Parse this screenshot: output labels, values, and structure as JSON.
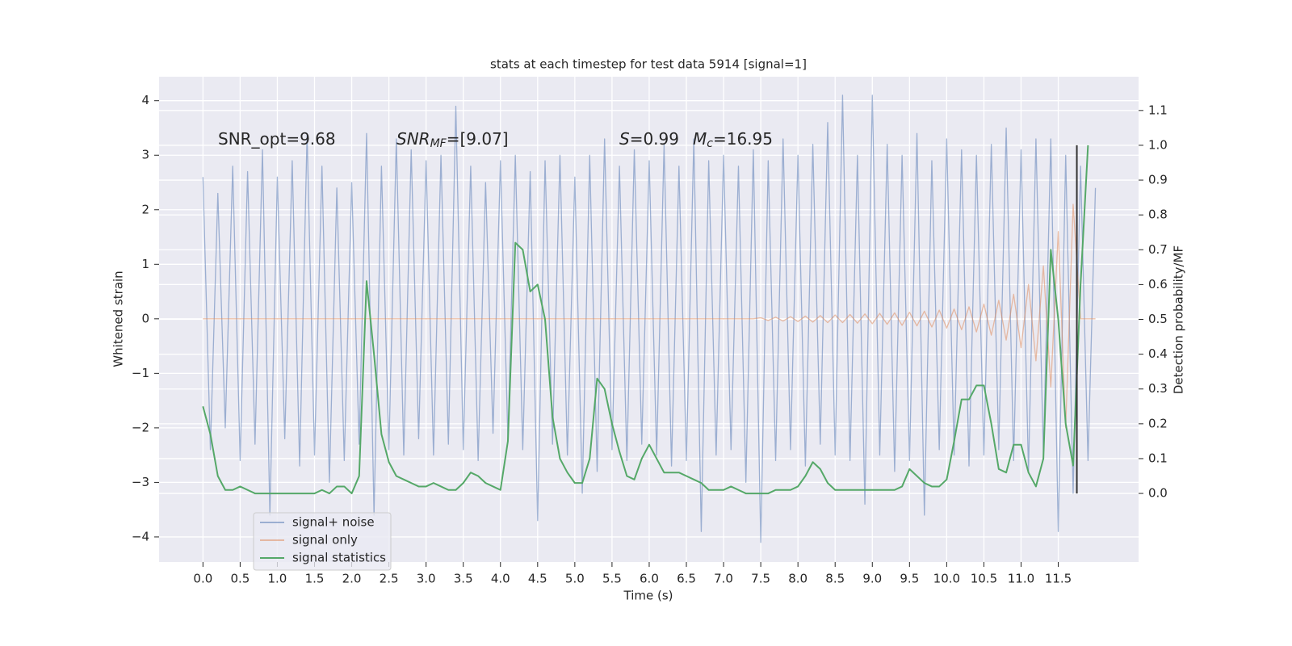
{
  "chart_data": {
    "type": "line",
    "title": "stats at each timestep for test data 5914 [signal=1]",
    "xlabel": "Time (s)",
    "ylabel": "Whitened strain",
    "y2label": "Detection probability/MF",
    "grid": true,
    "legend": "lower left",
    "xlim": [
      -0.59,
      12.58
    ],
    "ylim": [
      -4.46,
      4.44
    ],
    "y2lim": [
      -0.197,
      1.197
    ],
    "xticks": [
      {
        "value": 0,
        "label": "0.0"
      },
      0.5,
      {
        "value": 1,
        "label": "1.0"
      },
      1.5,
      {
        "value": 2,
        "label": "2.0"
      },
      2.5,
      {
        "value": 3,
        "label": "3.0"
      },
      3.5,
      {
        "value": 4,
        "label": "4.0"
      },
      4.5,
      {
        "value": 5,
        "label": "5.0"
      },
      5.5,
      {
        "value": 6,
        "label": "6.0"
      },
      6.5,
      {
        "value": 7,
        "label": "7.0"
      },
      7.5,
      {
        "value": 8,
        "label": "8.0"
      },
      8.5,
      {
        "value": 9,
        "label": "9.0"
      },
      9.5,
      {
        "value": 10,
        "label": "10.0"
      },
      10.5,
      {
        "value": 11,
        "label": "11.0"
      },
      11.5
    ],
    "yticks": [
      {
        "value": -4,
        "label": "−4"
      },
      {
        "value": -3,
        "label": "−3"
      },
      {
        "value": -2,
        "label": "−2"
      },
      {
        "value": -1,
        "label": "−1"
      },
      0,
      1,
      2,
      3,
      4
    ],
    "y2ticks": [
      {
        "value": 0,
        "label": "0.0"
      },
      0.1,
      0.2,
      0.3,
      0.4,
      0.5,
      0.6,
      0.7,
      0.8,
      0.9,
      {
        "value": 1,
        "label": "1.0"
      },
      1.1
    ],
    "annotations": [
      {
        "text": "SNR_opt=9.68"
      },
      {
        "base": "SNR",
        "sub": "MF",
        "rest": "=[9.07]"
      },
      {
        "base": "S",
        "rest": "=0.99"
      },
      {
        "base": "M",
        "sub": "c",
        "rest": "=16.95"
      }
    ],
    "vline": {
      "x": 11.75,
      "y2": [
        0,
        1
      ],
      "color": "#333333"
    },
    "x": [
      0.0,
      0.1,
      0.2,
      0.3,
      0.4,
      0.5,
      0.6,
      0.7,
      0.8,
      0.9,
      1.0,
      1.1,
      1.2,
      1.3,
      1.4,
      1.5,
      1.6,
      1.7,
      1.8,
      1.9,
      2.0,
      2.1,
      2.2,
      2.3,
      2.4,
      2.5,
      2.6,
      2.7,
      2.8,
      2.9,
      3.0,
      3.1,
      3.2,
      3.3,
      3.4,
      3.5,
      3.6,
      3.7,
      3.8,
      3.9,
      4.0,
      4.1,
      4.2,
      4.3,
      4.4,
      4.5,
      4.6,
      4.7,
      4.8,
      4.9,
      5.0,
      5.1,
      5.2,
      5.3,
      5.4,
      5.5,
      5.6,
      5.7,
      5.8,
      5.9,
      6.0,
      6.1,
      6.2,
      6.3,
      6.4,
      6.5,
      6.6,
      6.7,
      6.8,
      6.9,
      7.0,
      7.1,
      7.2,
      7.3,
      7.4,
      7.5,
      7.6,
      7.7,
      7.8,
      7.9,
      8.0,
      8.1,
      8.2,
      8.3,
      8.4,
      8.5,
      8.6,
      8.7,
      8.8,
      8.9,
      9.0,
      9.1,
      9.2,
      9.3,
      9.4,
      9.5,
      9.6,
      9.7,
      9.8,
      9.9,
      10.0,
      10.1,
      10.2,
      10.3,
      10.4,
      10.5,
      10.6,
      10.7,
      10.8,
      10.9,
      11.0,
      11.1,
      11.2,
      11.3,
      11.4,
      11.5,
      11.6,
      11.7,
      11.8,
      11.9,
      12.0
    ],
    "series": [
      {
        "name": "signal+ noise",
        "color": "#4c72b0",
        "alpha": 0.5,
        "values": [
          2.6,
          -2.4,
          2.3,
          -2.0,
          2.8,
          -2.6,
          2.7,
          -2.3,
          3.1,
          -3.6,
          2.6,
          -2.2,
          2.9,
          -2.7,
          3.4,
          -2.5,
          2.8,
          -3.0,
          2.4,
          -2.6,
          2.5,
          -2.3,
          3.4,
          -3.6,
          2.8,
          -2.4,
          3.3,
          -2.5,
          3.1,
          -2.2,
          2.9,
          -2.5,
          3.0,
          -2.3,
          3.9,
          -2.4,
          2.8,
          -2.6,
          2.5,
          -2.1,
          2.9,
          -2.2,
          3.0,
          -2.4,
          2.7,
          -3.7,
          2.9,
          -2.3,
          3.0,
          -2.5,
          2.6,
          -3.2,
          3.0,
          -2.8,
          3.3,
          -2.4,
          2.8,
          -2.6,
          3.1,
          -2.3,
          2.9,
          -2.5,
          3.2,
          -2.7,
          2.8,
          -2.6,
          3.3,
          -3.9,
          2.9,
          -2.5,
          3.0,
          -2.4,
          2.8,
          -3.0,
          3.1,
          -4.1,
          2.9,
          -2.6,
          3.3,
          -2.4,
          3.0,
          -2.7,
          3.2,
          -2.3,
          3.6,
          -2.5,
          4.1,
          -2.6,
          3.0,
          -3.4,
          4.1,
          -2.5,
          3.2,
          -2.8,
          3.0,
          -2.6,
          3.4,
          -3.6,
          2.9,
          -2.4,
          3.3,
          -2.5,
          3.1,
          -2.7,
          3.0,
          -2.5,
          3.2,
          -2.4,
          3.5,
          -2.6,
          3.1,
          -2.8,
          3.3,
          -2.5,
          3.3,
          -3.9,
          3.0,
          -3.2,
          2.8,
          -2.6,
          2.4
        ]
      },
      {
        "name": "signal only",
        "color": "#dd8452",
        "alpha": 0.5,
        "values": [
          0,
          0,
          0,
          0,
          0,
          0,
          0,
          0,
          0,
          0,
          0,
          0,
          0,
          0,
          0,
          0,
          0,
          0,
          0,
          0,
          0,
          0,
          0,
          0,
          0,
          0,
          0,
          0,
          0,
          0,
          0,
          0,
          0,
          0,
          0,
          0,
          0,
          0,
          0,
          0,
          0,
          0,
          0,
          0,
          0,
          0,
          0,
          0,
          0,
          0,
          0,
          0,
          0,
          0,
          0,
          0,
          0,
          0,
          0,
          0,
          0,
          0,
          0,
          0,
          0,
          0,
          0,
          0,
          0,
          0,
          0,
          0,
          0,
          0,
          0,
          0.02,
          -0.03,
          0.03,
          -0.04,
          0.04,
          -0.05,
          0.05,
          -0.06,
          0.06,
          -0.07,
          0.07,
          -0.07,
          0.08,
          -0.08,
          0.09,
          -0.09,
          0.1,
          -0.1,
          0.11,
          -0.12,
          0.12,
          -0.13,
          0.14,
          -0.15,
          0.16,
          -0.17,
          0.18,
          -0.2,
          0.22,
          -0.24,
          0.27,
          -0.3,
          0.34,
          -0.39,
          0.45,
          -0.53,
          0.63,
          -0.77,
          0.97,
          -1.25,
          1.6,
          -2.0,
          2.1,
          0,
          0,
          0
        ]
      },
      {
        "name": "signal statistics",
        "color": "#55a868",
        "alpha": 1,
        "axis": "y2",
        "values": [
          0.25,
          0.17,
          0.05,
          0.01,
          0.01,
          0.02,
          0.01,
          0.0,
          0.0,
          0.0,
          0.0,
          0.0,
          0.0,
          0.0,
          0.0,
          0.0,
          0.01,
          0.0,
          0.02,
          0.02,
          0.0,
          0.05,
          0.61,
          0.4,
          0.17,
          0.09,
          0.05,
          0.04,
          0.03,
          0.02,
          0.02,
          0.03,
          0.02,
          0.01,
          0.01,
          0.03,
          0.06,
          0.05,
          0.03,
          0.02,
          0.01,
          0.15,
          0.72,
          0.7,
          0.58,
          0.6,
          0.5,
          0.22,
          0.1,
          0.06,
          0.03,
          0.03,
          0.1,
          0.33,
          0.3,
          0.2,
          0.12,
          0.05,
          0.04,
          0.1,
          0.14,
          0.1,
          0.06,
          0.06,
          0.06,
          0.05,
          0.04,
          0.03,
          0.01,
          0.01,
          0.01,
          0.02,
          0.01,
          0.0,
          0.0,
          0.0,
          0.0,
          0.01,
          0.01,
          0.01,
          0.02,
          0.05,
          0.09,
          0.07,
          0.03,
          0.01,
          0.01,
          0.01,
          0.01,
          0.01,
          0.01,
          0.01,
          0.01,
          0.01,
          0.02,
          0.07,
          0.05,
          0.03,
          0.02,
          0.02,
          0.04,
          0.15,
          0.27,
          0.27,
          0.31,
          0.31,
          0.2,
          0.07,
          0.06,
          0.14,
          0.14,
          0.06,
          0.02,
          0.1,
          0.7,
          0.5,
          0.2,
          0.08,
          0.6,
          1.0,
          null
        ]
      }
    ]
  }
}
